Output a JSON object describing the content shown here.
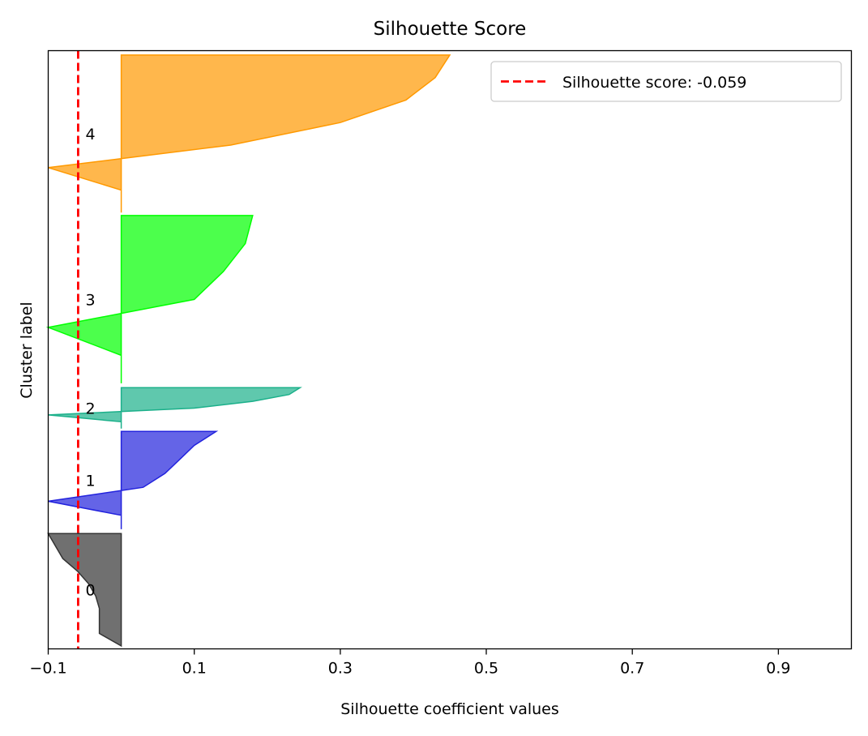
{
  "chart_data": {
    "type": "silhouette",
    "title": "Silhouette Score",
    "xlabel": "Silhouette coefficient values",
    "ylabel": "Cluster label",
    "xlim": [
      -0.1,
      1.0
    ],
    "xticks": [
      -0.1,
      0.1,
      0.3,
      0.5,
      0.7,
      0.9
    ],
    "xtick_labels": [
      "−0.1",
      "0.1",
      "0.3",
      "0.5",
      "0.7",
      "0.9"
    ],
    "ylim": [
      0,
      820
    ],
    "grid": false,
    "legend": {
      "position": "top-right",
      "entries": [
        "Silhouette score: -0.059"
      ]
    },
    "average_score": -0.059,
    "average_line_color": "#ff0000",
    "clusters": [
      {
        "label": "0",
        "color": "#333333",
        "y_lower": 4,
        "values": [
          0.0,
          -0.03,
          -0.03,
          -0.03,
          -0.035,
          -0.045,
          -0.06,
          -0.08,
          -0.09,
          -0.1
        ]
      },
      {
        "label": "1",
        "color": "#2222dd",
        "y_lower": 164,
        "values": [
          0.0,
          0.0,
          -0.1,
          0.03,
          0.06,
          0.08,
          0.1,
          0.13
        ]
      },
      {
        "label": "2",
        "color": "#1bb08a",
        "y_lower": 302,
        "values": [
          0.0,
          0.0,
          -0.1,
          0.1,
          0.18,
          0.23,
          0.245
        ]
      },
      {
        "label": "3",
        "color": "#00ff00",
        "y_lower": 364,
        "values": [
          0.0,
          0.0,
          -0.1,
          0.1,
          0.14,
          0.17,
          0.18
        ]
      },
      {
        "label": "4",
        "color": "#ff9900",
        "y_lower": 598,
        "values": [
          0.0,
          0.0,
          -0.1,
          0.15,
          0.3,
          0.39,
          0.43,
          0.45
        ]
      }
    ]
  }
}
